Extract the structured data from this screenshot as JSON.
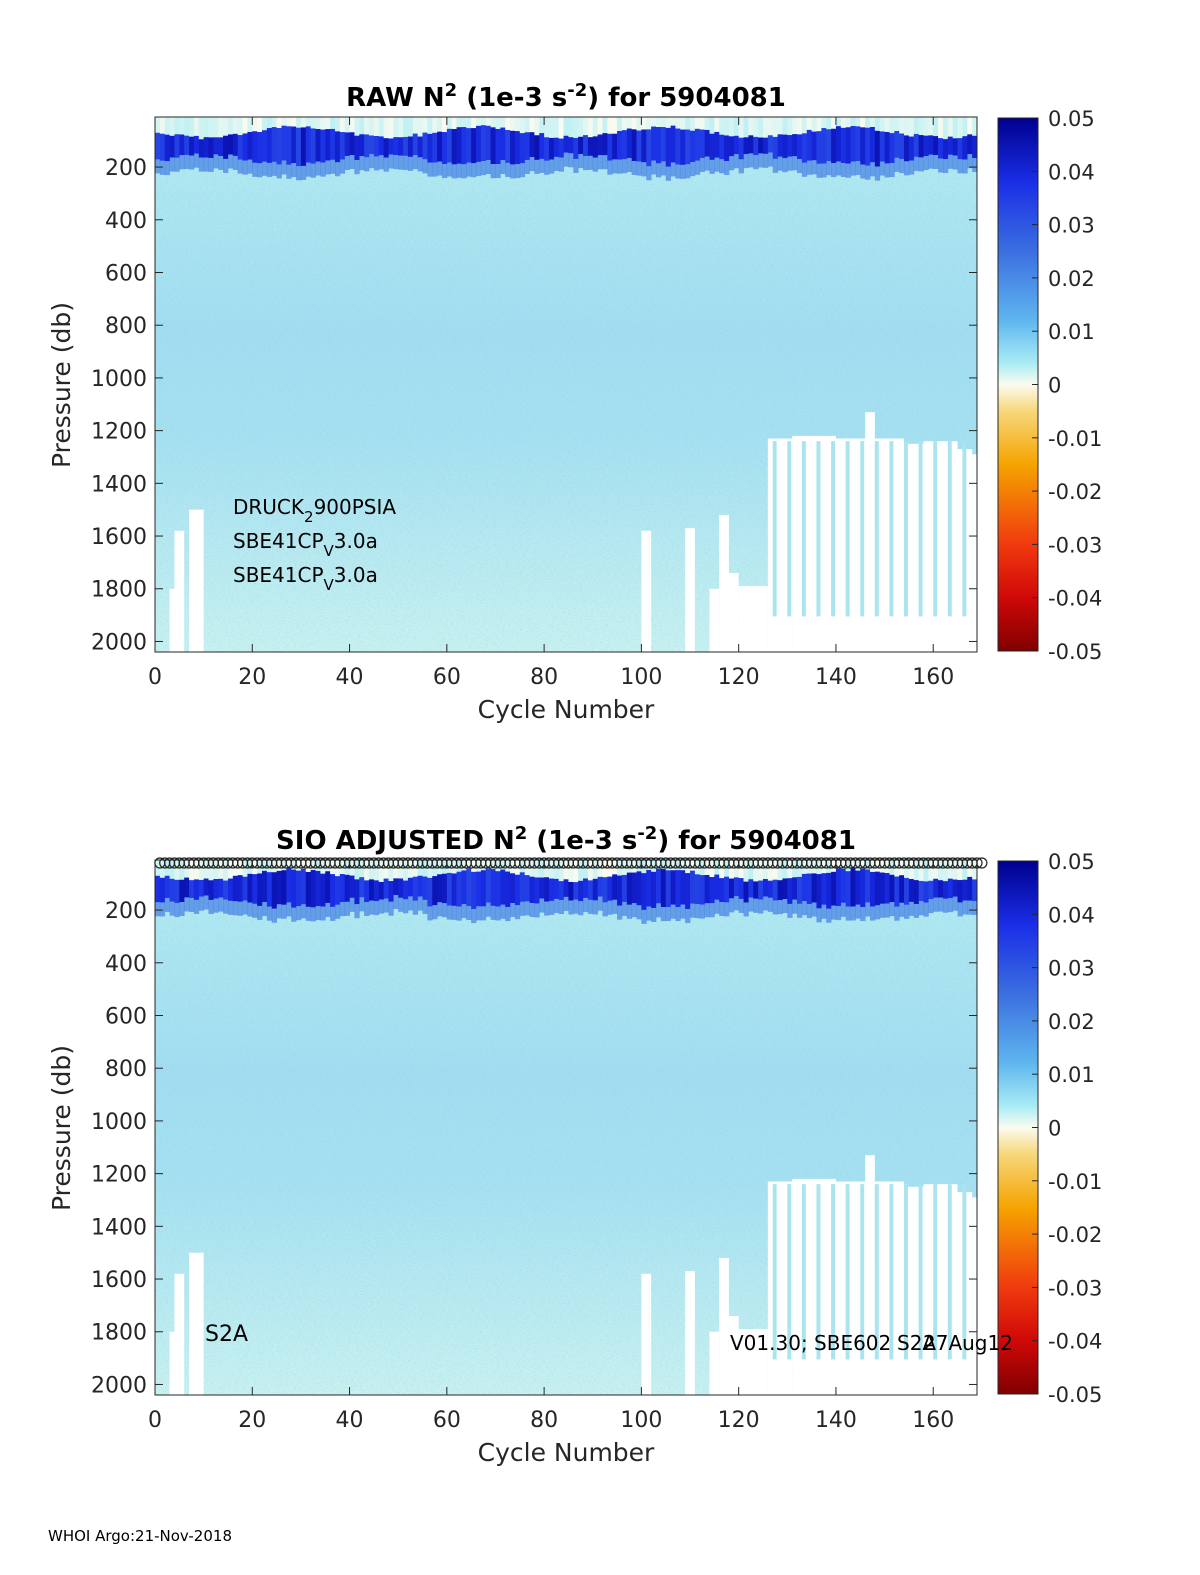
{
  "footer": "WHOI Argo:21-Nov-2018",
  "chart_data": [
    {
      "type": "heatmap",
      "title": "RAW N² (1e-3 s⁻²) for 5904081",
      "title_parts": {
        "pre": "RAW N",
        "sup1": "2",
        "mid": " (1e-3 s",
        "sup2": "-2",
        "post": ") for 5904081"
      },
      "xlabel": "Cycle Number",
      "ylabel": "Pressure (db)",
      "xlim": [
        0,
        169
      ],
      "ylim": [
        2040,
        10
      ],
      "y_reversed": true,
      "x_ticks": [
        "0",
        "20",
        "40",
        "60",
        "80",
        "100",
        "120",
        "140",
        "160"
      ],
      "y_ticks": [
        "200",
        "400",
        "600",
        "800",
        "1000",
        "1200",
        "1400",
        "1600",
        "1800",
        "2000"
      ],
      "colorbar": {
        "range": [
          -0.05,
          0.05
        ],
        "ticks": [
          "0.05",
          "0.04",
          "0.03",
          "0.02",
          "0.01",
          "0",
          "-0.01",
          "-0.02",
          "-0.03",
          "-0.04",
          "-0.05"
        ]
      },
      "annotations": [
        {
          "pre": "DRUCK",
          "sub": "2",
          "post": "900PSIA"
        },
        {
          "pre": "SBE41CP",
          "sub": "V",
          "post": "3.0a"
        },
        {
          "pre": "SBE41CP",
          "sub": "V",
          "post": "3.0a"
        }
      ],
      "surface_stratification": {
        "typical_value": 0.045,
        "depth_range_db": [
          40,
          230
        ]
      },
      "interior_value": 0.008,
      "max_depth_by_cycle": [
        [
          0,
          2000
        ],
        [
          3,
          1800
        ],
        [
          4,
          1580
        ],
        [
          6,
          2000
        ],
        [
          7,
          1500
        ],
        [
          10,
          2000
        ],
        [
          100,
          1580
        ],
        [
          102,
          2000
        ],
        [
          109,
          1570
        ],
        [
          111,
          2000
        ],
        [
          114,
          1800
        ],
        [
          116,
          1520
        ],
        [
          118,
          1740
        ],
        [
          120,
          1790
        ],
        [
          126,
          1230
        ],
        [
          131,
          1220
        ],
        [
          140,
          1230
        ],
        [
          146,
          1130
        ],
        [
          148,
          1230
        ],
        [
          154,
          1250
        ],
        [
          158,
          1240
        ],
        [
          165,
          1270
        ],
        [
          168,
          1290
        ]
      ]
    },
    {
      "type": "heatmap",
      "title": "SIO ADJUSTED N² (1e-3 s⁻²) for 5904081",
      "title_parts": {
        "pre": "SIO  ADJUSTED N",
        "sup1": "2",
        "mid": " (1e-3 s",
        "sup2": "-2",
        "post": ") for 5904081"
      },
      "xlabel": "Cycle Number",
      "ylabel": "Pressure (db)",
      "xlim": [
        0,
        169
      ],
      "ylim": [
        2040,
        10
      ],
      "y_reversed": true,
      "x_ticks": [
        "0",
        "20",
        "40",
        "60",
        "80",
        "100",
        "120",
        "140",
        "160"
      ],
      "y_ticks": [
        "200",
        "400",
        "600",
        "800",
        "1000",
        "1200",
        "1400",
        "1600",
        "1800",
        "2000"
      ],
      "colorbar": {
        "range": [
          -0.05,
          0.05
        ],
        "ticks": [
          "0.05",
          "0.04",
          "0.03",
          "0.02",
          "0.01",
          "0",
          "-0.01",
          "-0.02",
          "-0.03",
          "-0.04",
          "-0.05"
        ]
      },
      "annotations": [
        {
          "text": "S2A"
        },
        {
          "text": "V01.30; SBE602"
        },
        {
          "text": "S2A"
        },
        {
          "text": "27Aug12"
        }
      ],
      "markers": {
        "shape": "circle",
        "row": "surface",
        "every_cycle": true
      },
      "surface_stratification": {
        "typical_value": 0.045,
        "depth_range_db": [
          40,
          230
        ]
      },
      "interior_value": 0.008,
      "max_depth_by_cycle": [
        [
          0,
          2000
        ],
        [
          3,
          1800
        ],
        [
          4,
          1580
        ],
        [
          6,
          2000
        ],
        [
          7,
          1500
        ],
        [
          10,
          2000
        ],
        [
          100,
          1580
        ],
        [
          102,
          2000
        ],
        [
          109,
          1570
        ],
        [
          111,
          2000
        ],
        [
          114,
          1800
        ],
        [
          116,
          1520
        ],
        [
          118,
          1740
        ],
        [
          120,
          1790
        ],
        [
          126,
          1230
        ],
        [
          131,
          1220
        ],
        [
          140,
          1230
        ],
        [
          146,
          1130
        ],
        [
          148,
          1230
        ],
        [
          154,
          1250
        ],
        [
          158,
          1240
        ],
        [
          165,
          1270
        ],
        [
          168,
          1290
        ]
      ]
    }
  ]
}
